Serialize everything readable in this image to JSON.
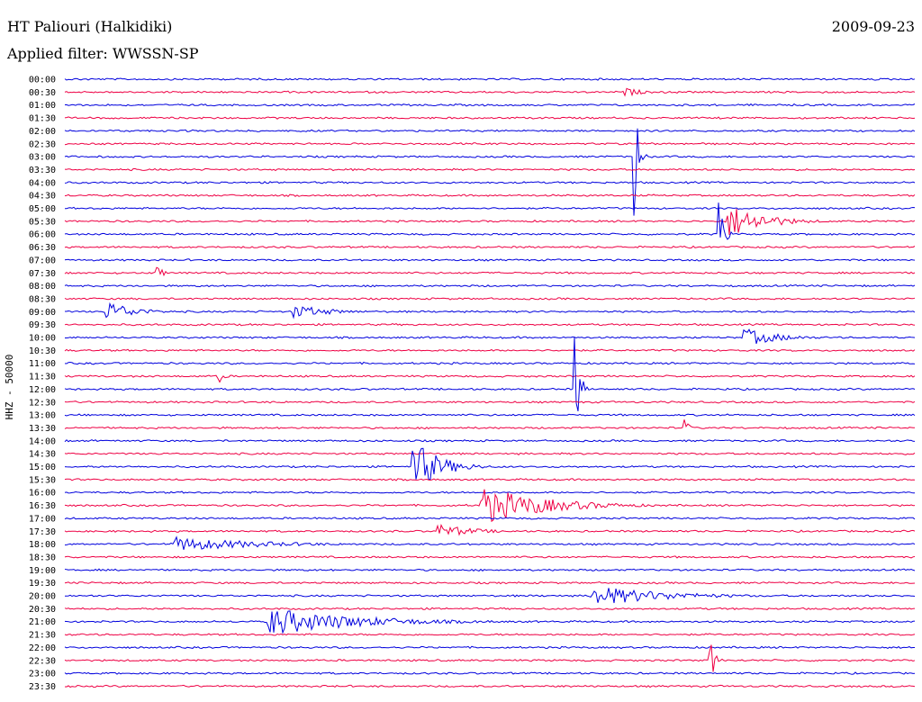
{
  "header": {
    "station": "HT Paliouri (Halkidiki)",
    "date": "2009-09-23",
    "filter": "Applied filter: WWSSN-SP"
  },
  "chart_data": {
    "type": "line",
    "chart_kind": "helicorder",
    "ylabel": "HHZ - 50000",
    "rows": [
      "00:00",
      "00:30",
      "01:00",
      "01:30",
      "02:00",
      "02:30",
      "03:00",
      "03:30",
      "04:00",
      "04:30",
      "05:00",
      "05:30",
      "06:00",
      "06:30",
      "07:00",
      "07:30",
      "08:00",
      "08:30",
      "09:00",
      "09:30",
      "10:00",
      "10:30",
      "11:00",
      "11:30",
      "12:00",
      "12:30",
      "13:00",
      "13:30",
      "14:00",
      "14:30",
      "15:00",
      "15:30",
      "16:00",
      "16:30",
      "17:00",
      "17:30",
      "18:00",
      "18:30",
      "19:00",
      "19:30",
      "20:00",
      "20:30",
      "21:00",
      "21:30",
      "22:00",
      "22:30",
      "23:00",
      "23:30"
    ],
    "row_minutes": 30,
    "colors": {
      "even_rows": "#0000dd",
      "odd_rows": "#ee0044"
    },
    "events": [
      {
        "row": "00:30",
        "t": 0.66,
        "amplitude": 5,
        "duration": 0.02
      },
      {
        "row": "03:00",
        "t": 0.67,
        "amplitude": 80,
        "duration": 0.005
      },
      {
        "row": "05:30",
        "t": 0.78,
        "amplitude": 20,
        "duration": 0.04
      },
      {
        "row": "06:00",
        "t": 0.77,
        "amplitude": 40,
        "duration": 0.005
      },
      {
        "row": "07:30",
        "t": 0.11,
        "amplitude": 10,
        "duration": 0.005
      },
      {
        "row": "09:00",
        "t": 0.05,
        "amplitude": 12,
        "duration": 0.03
      },
      {
        "row": "09:00",
        "t": 0.27,
        "amplitude": 8,
        "duration": 0.04
      },
      {
        "row": "10:00",
        "t": 0.8,
        "amplitude": 10,
        "duration": 0.04
      },
      {
        "row": "11:30",
        "t": 0.18,
        "amplitude": 15,
        "duration": 0.005
      },
      {
        "row": "12:00",
        "t": 0.6,
        "amplitude": 70,
        "duration": 0.005
      },
      {
        "row": "13:30",
        "t": 0.73,
        "amplitude": 10,
        "duration": 0.005
      },
      {
        "row": "15:00",
        "t": 0.41,
        "amplitude": 30,
        "duration": 0.03
      },
      {
        "row": "16:30",
        "t": 0.49,
        "amplitude": 22,
        "duration": 0.07
      },
      {
        "row": "17:30",
        "t": 0.44,
        "amplitude": 8,
        "duration": 0.04
      },
      {
        "row": "18:00",
        "t": 0.13,
        "amplitude": 8,
        "duration": 0.1
      },
      {
        "row": "20:00",
        "t": 0.62,
        "amplitude": 12,
        "duration": 0.08
      },
      {
        "row": "21:00",
        "t": 0.24,
        "amplitude": 16,
        "duration": 0.1
      },
      {
        "row": "22:30",
        "t": 0.76,
        "amplitude": 22,
        "duration": 0.005
      }
    ]
  }
}
